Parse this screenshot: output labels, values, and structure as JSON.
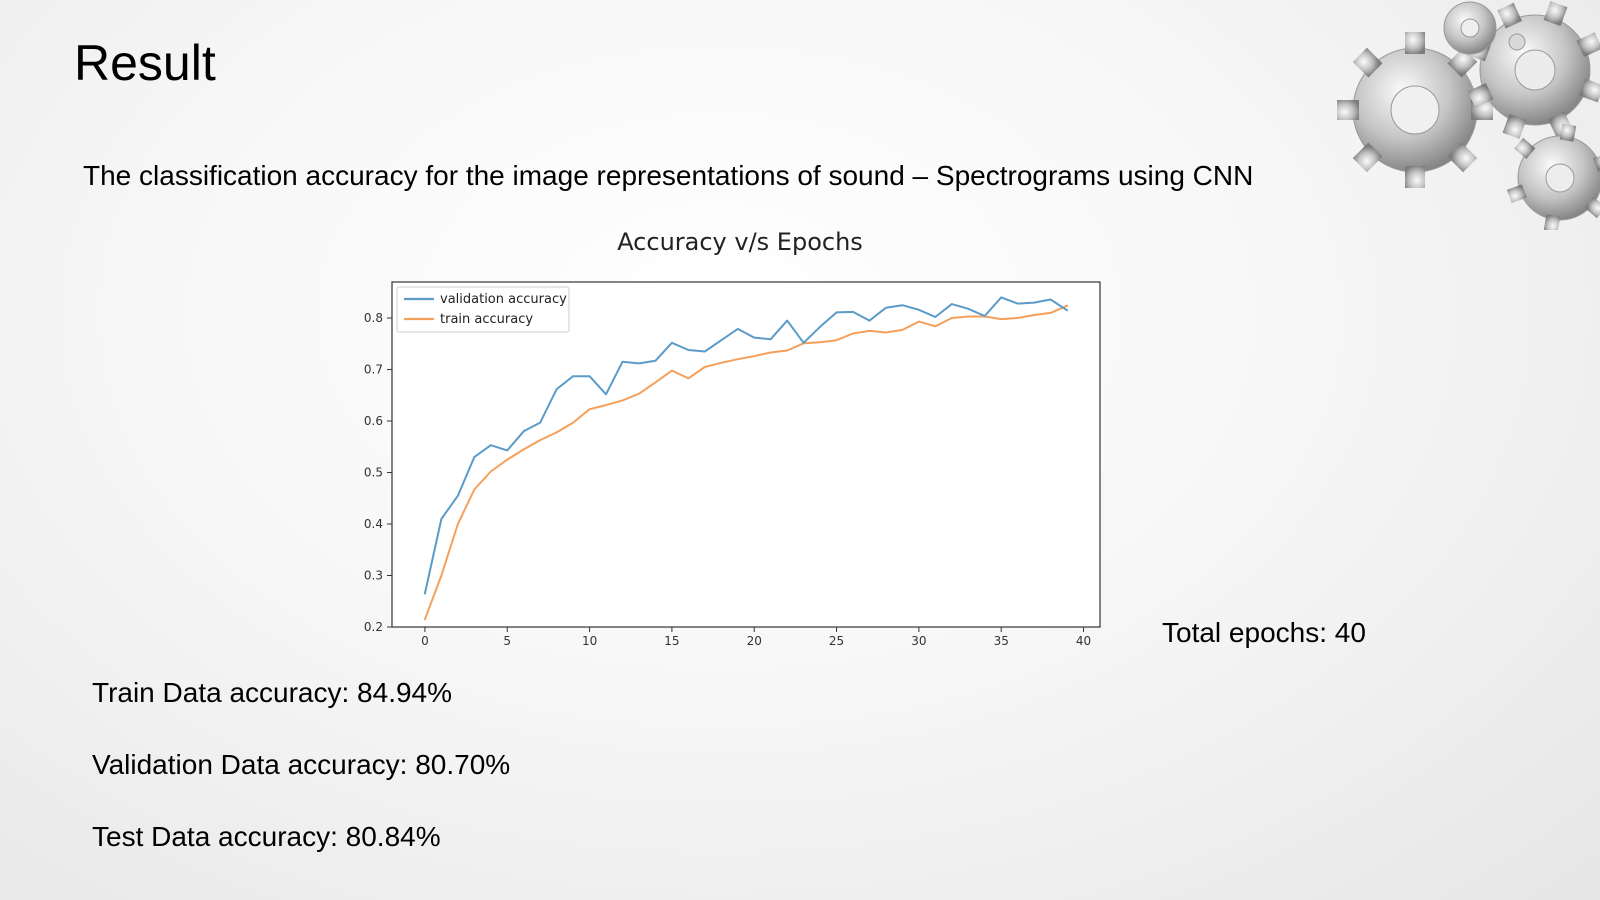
{
  "slide": {
    "title": "Result",
    "subtitle": "The classification accuracy for the image representations of sound – Spectrograms using CNN",
    "total_epochs": "Total epochs: 40",
    "stats": {
      "train": "Train Data accuracy: 84.94%",
      "validation": "Validation Data accuracy: 80.70%",
      "test": "Test Data accuracy: 80.84%"
    }
  },
  "chart_data": {
    "type": "line",
    "title": "Accuracy v/s Epochs",
    "xlabel": "",
    "ylabel": "",
    "xlim": [
      -2,
      41
    ],
    "ylim": [
      0.2,
      0.87
    ],
    "xticks": [
      0,
      5,
      10,
      15,
      20,
      25,
      30,
      35,
      40
    ],
    "yticks": [
      0.2,
      0.3,
      0.4,
      0.5,
      0.6,
      0.7,
      0.8
    ],
    "grid": false,
    "legend_position": "upper-left",
    "x": [
      0,
      1,
      2,
      3,
      4,
      5,
      6,
      7,
      8,
      9,
      10,
      11,
      12,
      13,
      14,
      15,
      16,
      17,
      18,
      19,
      20,
      21,
      22,
      23,
      24,
      25,
      26,
      27,
      28,
      29,
      30,
      31,
      32,
      33,
      34,
      35,
      36,
      37,
      38,
      39
    ],
    "series": [
      {
        "name": "validation accuracy",
        "color": "#5b9bc8",
        "values": [
          0.265,
          0.41,
          0.455,
          0.53,
          0.553,
          0.543,
          0.58,
          0.597,
          0.662,
          0.687,
          0.687,
          0.652,
          0.715,
          0.712,
          0.717,
          0.752,
          0.738,
          0.735,
          0.757,
          0.779,
          0.762,
          0.759,
          0.795,
          0.752,
          0.783,
          0.811,
          0.812,
          0.795,
          0.82,
          0.825,
          0.816,
          0.802,
          0.827,
          0.818,
          0.804,
          0.84,
          0.828,
          0.83,
          0.836,
          0.815
        ]
      },
      {
        "name": "train accuracy",
        "color": "#f5a05a",
        "values": [
          0.215,
          0.3,
          0.4,
          0.467,
          0.502,
          0.525,
          0.545,
          0.563,
          0.578,
          0.597,
          0.623,
          0.631,
          0.64,
          0.653,
          0.675,
          0.698,
          0.683,
          0.705,
          0.713,
          0.72,
          0.726,
          0.733,
          0.737,
          0.751,
          0.753,
          0.757,
          0.77,
          0.775,
          0.772,
          0.777,
          0.793,
          0.784,
          0.8,
          0.803,
          0.803,
          0.798,
          0.8,
          0.806,
          0.81,
          0.824
        ]
      }
    ]
  }
}
